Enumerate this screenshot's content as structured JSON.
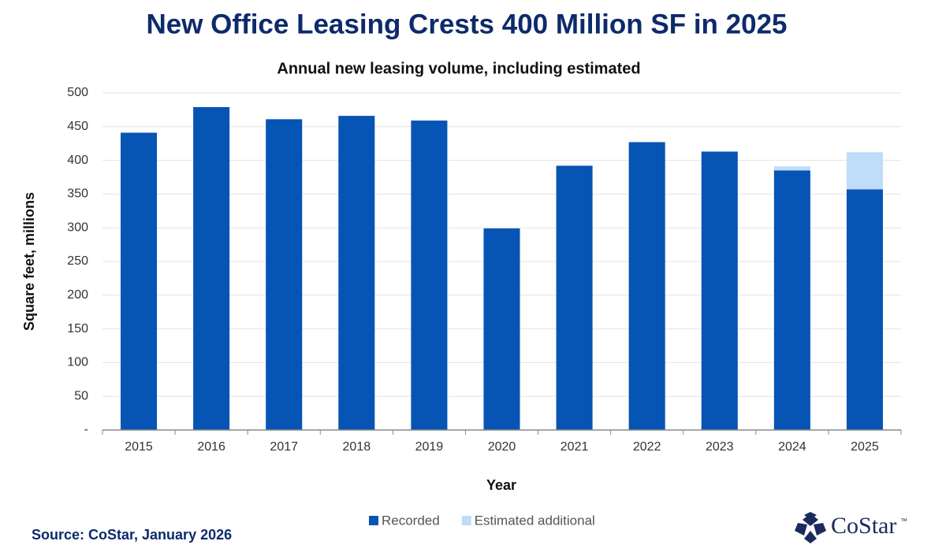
{
  "chart_data": {
    "type": "stacked_bar",
    "title": "New Office Leasing Crests 400 Million SF in 2025",
    "subtitle": "Annual new leasing volume, including estimated",
    "x_label": "Year",
    "y_label": "Square feet, millions",
    "categories": [
      "2015",
      "2016",
      "2017",
      "2018",
      "2019",
      "2020",
      "2021",
      "2022",
      "2023",
      "2024",
      "2025"
    ],
    "series": [
      {
        "name": "Recorded",
        "color": "#0654b4",
        "values": [
          441,
          479,
          461,
          466,
          459,
          299,
          392,
          427,
          413,
          385,
          357
        ]
      },
      {
        "name": "Estimated additional",
        "color": "#bfdcf8",
        "values": [
          0,
          0,
          0,
          0,
          0,
          0,
          0,
          0,
          0,
          6,
          55
        ]
      }
    ],
    "ylim": [
      0,
      500
    ],
    "yticks": [
      {
        "value": 0,
        "label": "-"
      },
      50,
      100,
      150,
      200,
      250,
      300,
      350,
      400,
      450,
      500
    ],
    "grid": true,
    "legend": "bottom",
    "source": "Source: CoStar, January 2026",
    "logo": "CoStar",
    "logo_mark": "™"
  }
}
